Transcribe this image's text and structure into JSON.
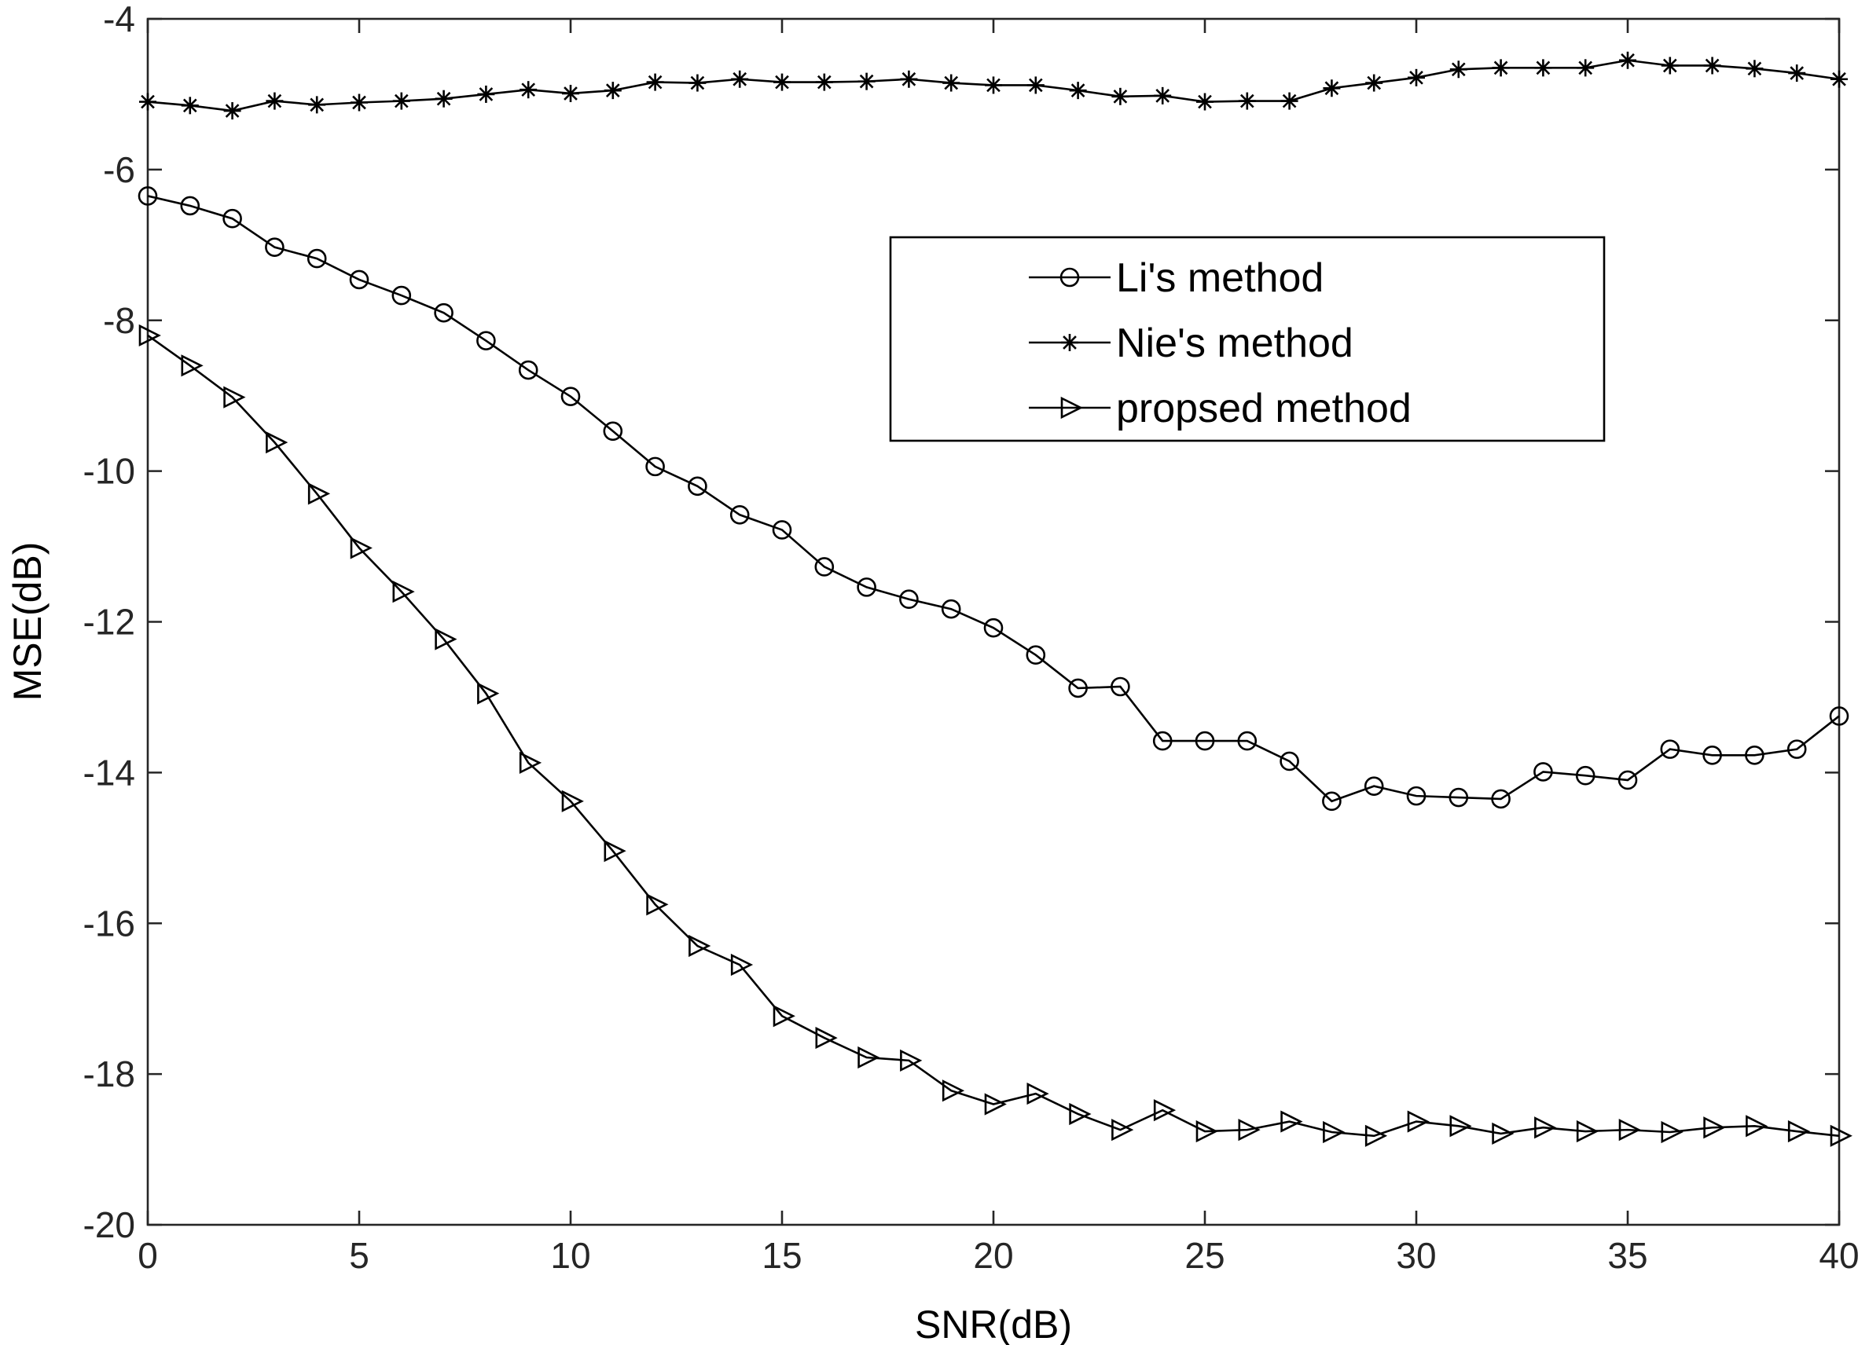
{
  "chart_data": {
    "type": "line",
    "title": "",
    "xlabel": "SNR(dB)",
    "ylabel": "MSE(dB)",
    "xlim": [
      0,
      40
    ],
    "ylim": [
      -20,
      -4
    ],
    "xticks": [
      0,
      5,
      10,
      15,
      20,
      25,
      30,
      35,
      40
    ],
    "yticks": [
      -20,
      -18,
      -16,
      -14,
      -12,
      -10,
      -8,
      -6,
      -4
    ],
    "grid": false,
    "legend_position": "upper-right",
    "x": [
      0,
      1,
      2,
      3,
      4,
      5,
      6,
      7,
      8,
      9,
      10,
      11,
      12,
      13,
      14,
      15,
      16,
      17,
      18,
      19,
      20,
      21,
      22,
      23,
      24,
      25,
      26,
      27,
      28,
      29,
      30,
      31,
      32,
      33,
      34,
      35,
      36,
      37,
      38,
      39,
      40
    ],
    "series": [
      {
        "name": "Li's method",
        "marker": "circle",
        "values": [
          -6.35,
          -6.48,
          -6.65,
          -7.03,
          -7.18,
          -7.46,
          -7.67,
          -7.9,
          -8.27,
          -8.66,
          -9.01,
          -9.47,
          -9.94,
          -10.2,
          -10.58,
          -10.78,
          -11.27,
          -11.54,
          -11.7,
          -11.83,
          -12.08,
          -12.44,
          -12.88,
          -12.86,
          -13.58,
          -13.58,
          -13.58,
          -13.85,
          -14.38,
          -14.18,
          -14.31,
          -14.33,
          -14.35,
          -13.99,
          -14.04,
          -14.1,
          -13.69,
          -13.77,
          -13.77,
          -13.69,
          -13.25
        ]
      },
      {
        "name": "Nie's method",
        "marker": "asterisk",
        "values": [
          -5.1,
          -5.15,
          -5.22,
          -5.09,
          -5.14,
          -5.11,
          -5.09,
          -5.06,
          -5.0,
          -4.94,
          -4.99,
          -4.95,
          -4.84,
          -4.85,
          -4.8,
          -4.84,
          -4.84,
          -4.83,
          -4.8,
          -4.85,
          -4.88,
          -4.88,
          -4.95,
          -5.03,
          -5.02,
          -5.1,
          -5.09,
          -5.09,
          -4.92,
          -4.85,
          -4.78,
          -4.67,
          -4.65,
          -4.65,
          -4.65,
          -4.55,
          -4.62,
          -4.62,
          -4.66,
          -4.72,
          -4.8
        ]
      },
      {
        "name": "propsed method",
        "marker": "triangle-right",
        "values": [
          -8.2,
          -8.6,
          -9.02,
          -9.62,
          -10.3,
          -11.02,
          -11.6,
          -12.23,
          -12.95,
          -13.87,
          -14.38,
          -15.04,
          -15.75,
          -16.3,
          -16.55,
          -17.23,
          -17.52,
          -17.78,
          -17.82,
          -18.22,
          -18.4,
          -18.26,
          -18.53,
          -18.74,
          -18.48,
          -18.76,
          -18.74,
          -18.63,
          -18.77,
          -18.82,
          -18.63,
          -18.69,
          -18.79,
          -18.71,
          -18.76,
          -18.74,
          -18.77,
          -18.71,
          -18.69,
          -18.76,
          -18.82
        ]
      }
    ]
  }
}
